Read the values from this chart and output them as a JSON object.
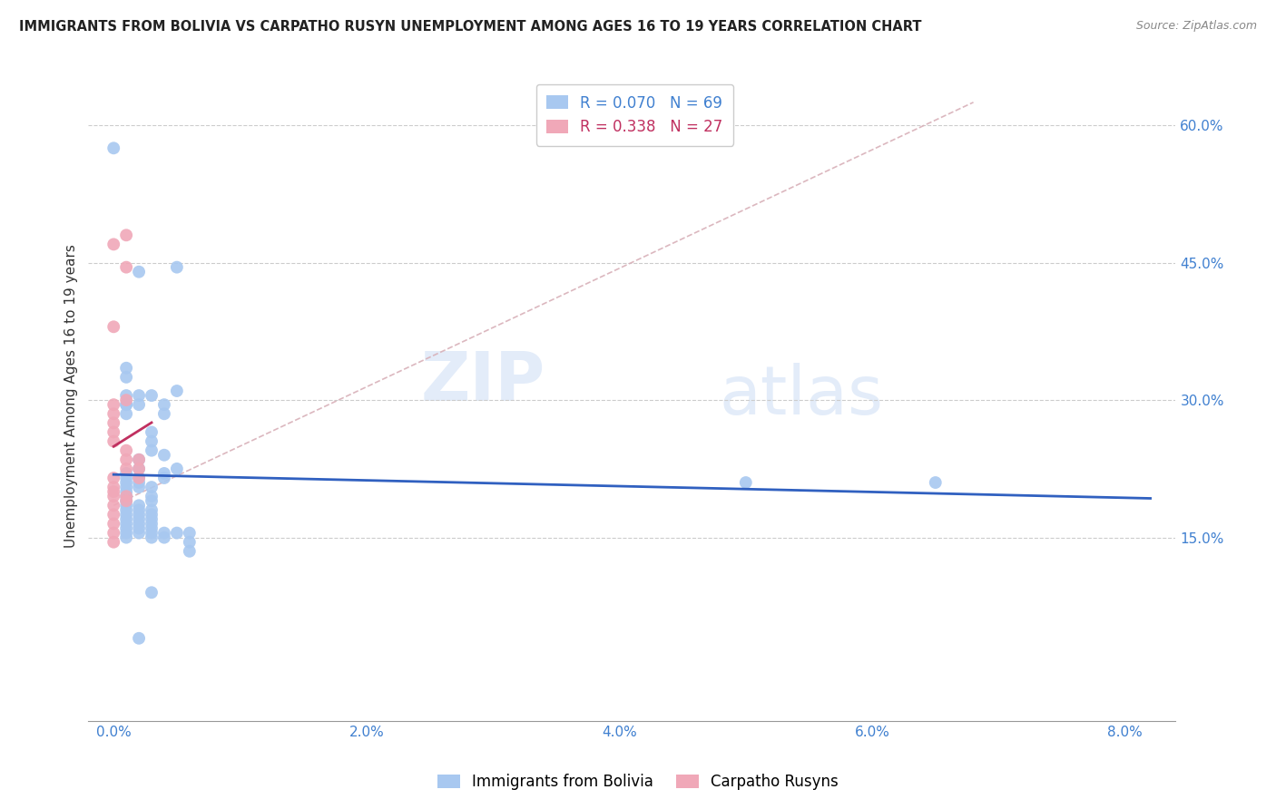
{
  "title": "IMMIGRANTS FROM BOLIVIA VS CARPATHO RUSYN UNEMPLOYMENT AMONG AGES 16 TO 19 YEARS CORRELATION CHART",
  "source": "Source: ZipAtlas.com",
  "xlabel_ticks": [
    "0.0%",
    "2.0%",
    "4.0%",
    "6.0%",
    "8.0%"
  ],
  "xlabel_tick_vals": [
    0.0,
    0.02,
    0.04,
    0.06,
    0.08
  ],
  "ylabel": "Unemployment Among Ages 16 to 19 years",
  "ylabel_ticks": [
    "15.0%",
    "30.0%",
    "45.0%",
    "60.0%"
  ],
  "ylabel_tick_vals": [
    0.15,
    0.3,
    0.45,
    0.6
  ],
  "xlim": [
    -0.002,
    0.084
  ],
  "ylim": [
    -0.05,
    0.66
  ],
  "bolivia_R": 0.07,
  "bolivia_N": 69,
  "rusyn_R": 0.338,
  "rusyn_N": 27,
  "bolivia_color": "#a8c8f0",
  "rusyn_color": "#f0a8b8",
  "bolivia_line_color": "#3060c0",
  "rusyn_line_color": "#c03060",
  "diagonal_color": "#d8b0b8",
  "watermark_top": "ZIP",
  "watermark_bot": "atlas",
  "bolivia_points": [
    [
      0.0,
      0.575
    ],
    [
      0.002,
      0.44
    ],
    [
      0.001,
      0.335
    ],
    [
      0.001,
      0.325
    ],
    [
      0.002,
      0.305
    ],
    [
      0.005,
      0.445
    ],
    [
      0.002,
      0.295
    ],
    [
      0.003,
      0.305
    ],
    [
      0.004,
      0.295
    ],
    [
      0.004,
      0.285
    ],
    [
      0.001,
      0.305
    ],
    [
      0.001,
      0.295
    ],
    [
      0.003,
      0.265
    ],
    [
      0.003,
      0.255
    ],
    [
      0.003,
      0.245
    ],
    [
      0.005,
      0.31
    ],
    [
      0.001,
      0.295
    ],
    [
      0.001,
      0.285
    ],
    [
      0.004,
      0.24
    ],
    [
      0.002,
      0.235
    ],
    [
      0.002,
      0.225
    ],
    [
      0.005,
      0.225
    ],
    [
      0.001,
      0.22
    ],
    [
      0.001,
      0.215
    ],
    [
      0.001,
      0.21
    ],
    [
      0.002,
      0.215
    ],
    [
      0.002,
      0.21
    ],
    [
      0.002,
      0.205
    ],
    [
      0.001,
      0.205
    ],
    [
      0.003,
      0.205
    ],
    [
      0.001,
      0.2
    ],
    [
      0.001,
      0.195
    ],
    [
      0.001,
      0.19
    ],
    [
      0.003,
      0.195
    ],
    [
      0.003,
      0.19
    ],
    [
      0.001,
      0.185
    ],
    [
      0.001,
      0.18
    ],
    [
      0.002,
      0.185
    ],
    [
      0.002,
      0.18
    ],
    [
      0.003,
      0.18
    ],
    [
      0.004,
      0.22
    ],
    [
      0.004,
      0.215
    ],
    [
      0.001,
      0.175
    ],
    [
      0.001,
      0.17
    ],
    [
      0.002,
      0.175
    ],
    [
      0.002,
      0.17
    ],
    [
      0.003,
      0.175
    ],
    [
      0.003,
      0.17
    ],
    [
      0.001,
      0.165
    ],
    [
      0.001,
      0.16
    ],
    [
      0.002,
      0.165
    ],
    [
      0.002,
      0.16
    ],
    [
      0.003,
      0.165
    ],
    [
      0.003,
      0.16
    ],
    [
      0.001,
      0.155
    ],
    [
      0.001,
      0.15
    ],
    [
      0.002,
      0.155
    ],
    [
      0.003,
      0.155
    ],
    [
      0.003,
      0.15
    ],
    [
      0.005,
      0.155
    ],
    [
      0.006,
      0.155
    ],
    [
      0.006,
      0.145
    ],
    [
      0.006,
      0.135
    ],
    [
      0.004,
      0.155
    ],
    [
      0.004,
      0.15
    ],
    [
      0.05,
      0.21
    ],
    [
      0.065,
      0.21
    ],
    [
      0.002,
      0.04
    ],
    [
      0.003,
      0.09
    ]
  ],
  "rusyn_points": [
    [
      0.0,
      0.47
    ],
    [
      0.001,
      0.48
    ],
    [
      0.001,
      0.445
    ],
    [
      0.0,
      0.38
    ],
    [
      0.001,
      0.3
    ],
    [
      0.0,
      0.295
    ],
    [
      0.0,
      0.285
    ],
    [
      0.0,
      0.275
    ],
    [
      0.0,
      0.265
    ],
    [
      0.0,
      0.255
    ],
    [
      0.001,
      0.245
    ],
    [
      0.001,
      0.235
    ],
    [
      0.001,
      0.225
    ],
    [
      0.0,
      0.215
    ],
    [
      0.0,
      0.205
    ],
    [
      0.0,
      0.2
    ],
    [
      0.001,
      0.195
    ],
    [
      0.001,
      0.19
    ],
    [
      0.002,
      0.235
    ],
    [
      0.002,
      0.225
    ],
    [
      0.002,
      0.215
    ],
    [
      0.0,
      0.195
    ],
    [
      0.0,
      0.185
    ],
    [
      0.0,
      0.175
    ],
    [
      0.0,
      0.165
    ],
    [
      0.0,
      0.155
    ],
    [
      0.0,
      0.145
    ]
  ]
}
